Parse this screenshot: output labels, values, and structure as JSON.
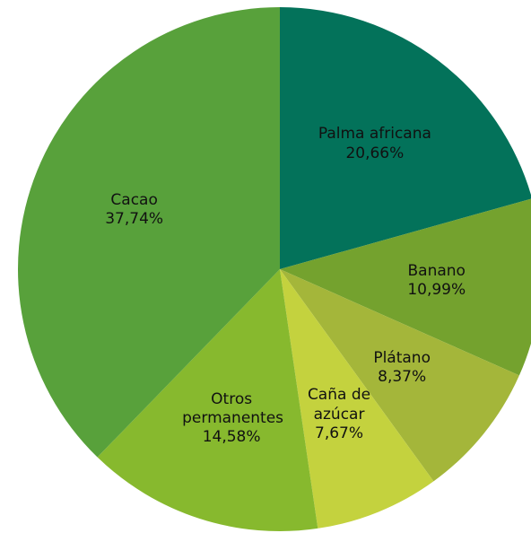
{
  "chart_data": {
    "type": "pie",
    "categories": [
      "Palma africana",
      "Banano",
      "Plátano",
      "Caña de azúcar",
      "Otros permanentes",
      "Cacao"
    ],
    "values": [
      20.66,
      10.99,
      8.37,
      7.67,
      14.58,
      37.74
    ],
    "value_labels": [
      "20,66%",
      "10,99%",
      "8,37%",
      "7,67%",
      "14,58%",
      "37,74%"
    ],
    "colors": [
      "#03725a",
      "#74a22e",
      "#a4b63a",
      "#c4d23e",
      "#87b92e",
      "#58a13b"
    ]
  }
}
